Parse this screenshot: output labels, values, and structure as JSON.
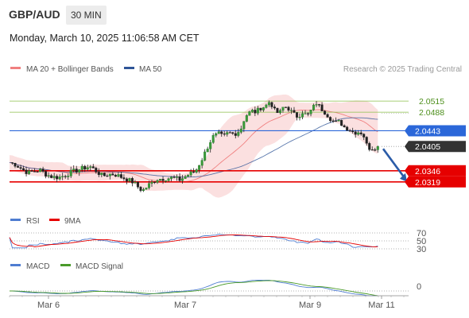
{
  "header": {
    "pair": "GBP/AUD",
    "timeframe": "30 MIN",
    "timestamp": "Monday, March 10, 2025 11:06:58 AM CET"
  },
  "legend": {
    "ma20_bb": "MA 20 + Bollinger Bands",
    "ma50": "MA 50",
    "copyright": "Research © 2025 Trading Central",
    "rsi": "RSI",
    "rsi_ma": "9MA",
    "macd": "MACD",
    "macd_signal": "MACD Signal"
  },
  "colors": {
    "ma20": "#f08080",
    "ma50": "#2f5597",
    "bb_fill": "#fadada",
    "resistance": "#8bbf4a",
    "pivot": "#2b67d9",
    "support": "#e60000",
    "current": "#333333",
    "rsi": "#4f7dd1",
    "rsi_ma": "#e60000",
    "macd": "#4f7dd1",
    "macd_signal": "#4a9a2a",
    "arrow": "#2b5ca8"
  },
  "chart_data": [
    {
      "type": "candlestick",
      "title": "GBP/AUD",
      "ylim": [
        2.0255,
        2.0575
      ],
      "x_ticks": [
        "Mar 6",
        "Mar 7",
        "Mar 9",
        "Mar 11"
      ],
      "levels": [
        {
          "label": "2.0515",
          "value": 2.0515,
          "kind": "resistance"
        },
        {
          "label": "2.0488",
          "value": 2.0488,
          "kind": "resistance"
        },
        {
          "label": "2.0443",
          "value": 2.0443,
          "kind": "pivot"
        },
        {
          "label": "2.0405",
          "value": 2.0405,
          "kind": "current"
        },
        {
          "label": "2.0346",
          "value": 2.0346,
          "kind": "support"
        },
        {
          "label": "2.0319",
          "value": 2.0319,
          "kind": "support"
        }
      ],
      "trend_arrow": {
        "from": 2.0405,
        "to": 2.0319,
        "direction": "down"
      },
      "price_path": [
        [
          0,
          2.0366
        ],
        [
          8,
          2.0361
        ],
        [
          16,
          2.035
        ],
        [
          24,
          2.0341
        ],
        [
          32,
          2.0345
        ],
        [
          40,
          2.0347
        ],
        [
          48,
          2.0336
        ],
        [
          56,
          2.0331
        ],
        [
          64,
          2.033
        ],
        [
          72,
          2.0335
        ],
        [
          80,
          2.0343
        ],
        [
          88,
          2.0348
        ],
        [
          96,
          2.0353
        ],
        [
          104,
          2.0356
        ],
        [
          112,
          2.0345
        ],
        [
          120,
          2.0333
        ],
        [
          128,
          2.0338
        ],
        [
          136,
          2.0337
        ],
        [
          144,
          2.0331
        ],
        [
          152,
          2.0325
        ],
        [
          160,
          2.0318
        ],
        [
          168,
          2.0302
        ],
        [
          172,
          2.0298
        ],
        [
          180,
          2.0312
        ],
        [
          190,
          2.0326
        ],
        [
          200,
          2.0327
        ],
        [
          210,
          2.0329
        ],
        [
          220,
          2.0324
        ],
        [
          230,
          2.0336
        ],
        [
          240,
          2.0345
        ],
        [
          248,
          2.0373
        ],
        [
          256,
          2.0405
        ],
        [
          262,
          2.0428
        ],
        [
          270,
          2.0435
        ],
        [
          276,
          2.0428
        ],
        [
          282,
          2.0438
        ],
        [
          290,
          2.0435
        ],
        [
          298,
          2.0445
        ],
        [
          304,
          2.0478
        ],
        [
          312,
          2.0491
        ],
        [
          318,
          2.0488
        ],
        [
          324,
          2.0499
        ],
        [
          330,
          2.0502
        ],
        [
          336,
          2.0515
        ],
        [
          342,
          2.0492
        ],
        [
          348,
          2.0484
        ],
        [
          354,
          2.0503
        ],
        [
          360,
          2.0497
        ],
        [
          366,
          2.0484
        ],
        [
          372,
          2.0477
        ],
        [
          378,
          2.0489
        ],
        [
          384,
          2.0478
        ],
        [
          390,
          2.0495
        ],
        [
          396,
          2.051
        ],
        [
          402,
          2.0497
        ],
        [
          408,
          2.0486
        ],
        [
          414,
          2.0473
        ],
        [
          420,
          2.0462
        ],
        [
          426,
          2.0465
        ],
        [
          432,
          2.0452
        ],
        [
          438,
          2.0447
        ],
        [
          444,
          2.0439
        ],
        [
          450,
          2.044
        ],
        [
          456,
          2.0437
        ],
        [
          462,
          2.0402
        ],
        [
          468,
          2.0401
        ],
        [
          474,
          2.0404
        ],
        [
          478,
          2.0405
        ]
      ]
    },
    {
      "type": "line",
      "title": "RSI",
      "ylim": [
        20,
        80
      ],
      "y_ticks": [
        70,
        50,
        30
      ]
    },
    {
      "type": "line",
      "title": "MACD",
      "y_ticks": [
        0
      ]
    }
  ]
}
